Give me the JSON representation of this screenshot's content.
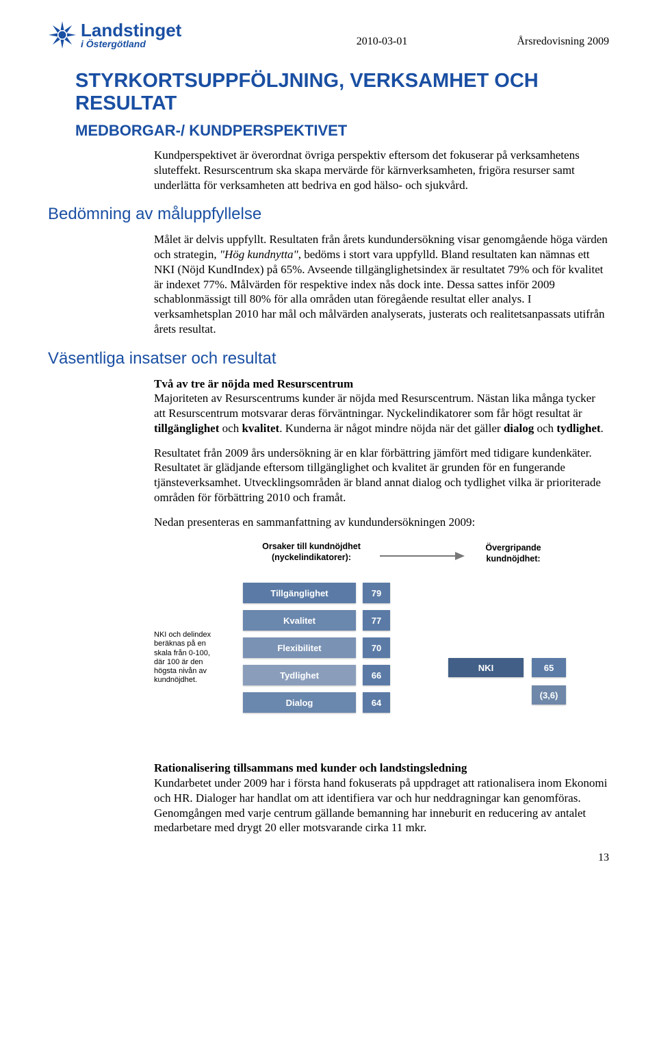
{
  "logo": {
    "line1": "Landstinget",
    "line2": "i Östergötland",
    "star_color": "#1a4fa3"
  },
  "header": {
    "date": "2010-03-01",
    "doc_title": "Årsredovisning 2009"
  },
  "page_number": "13",
  "title": "STYRKORTSUPPFÖLJNING, VERKSAMHET OCH RESULTAT",
  "subtitle": "MEDBORGAR-/ KUNDPERSPEKTIVET",
  "intro": "Kundperspektivet är överordnat övriga perspektiv eftersom det fokuserar på verksamhetens sluteffekt. Resurscentrum ska skapa mervärde för kärnverksamheten, frigöra resurser samt underlätta för verksamheten att bedriva en god hälso- och sjukvård.",
  "sections": {
    "s1": {
      "heading": "Bedömning av måluppfyllelse",
      "p1": "Målet är delvis uppfyllt. Resultaten från årets kundundersökning visar genomgående höga värden och strategin, \"Hög kundnytta\", bedöms i stort vara uppfylld. Bland resultaten kan nämnas ett NKI (Nöjd KundIndex) på 65%. Avseende tillgänglighetsindex är resultatet 79% och för kvalitet är indexet 77%. Målvärden för respektive index nås dock inte. Dessa sattes inför 2009 schablonmässigt till 80% för alla områden utan föregående resultat eller analys. I verksamhetsplan 2010 har mål och målvärden analyserats, justerats och realitetsanpassats utifrån årets resultat."
    },
    "s2": {
      "heading": "Väsentliga insatser och resultat",
      "b1_title": "Två av tre är nöjda med Resurscentrum",
      "p2": "Majoriteten av Resurscentrums kunder är nöjda med Resurscentrum. Nästan lika många tycker att Resurscentrum motsvarar deras förväntningar. Nyckelindikatorer som får högt resultat är tillgänglighet och kvalitet. Kunderna är något mindre nöjda när det gäller dialog och tydlighet.",
      "p3": "Resultatet från 2009 års undersökning är en klar förbättring jämfört med tidigare kundenkäter. Resultatet är glädjande eftersom tillgänglighet och kvalitet är grunden för en fungerande tjänsteverksamhet. Utvecklingsområden är bland annat dialog och tydlighet vilka är prioriterade områden för förbättring 2010 och framåt.",
      "p4": "Nedan presenteras en sammanfattning av kundundersökningen 2009:",
      "b2_title": "Rationalisering tillsammans med kunder och landstingsledning",
      "p5": "Kundarbetet under 2009 har i första hand fokuserats på uppdraget att rationalisera inom Ekonomi och HR. Dialoger har handlat om att identifiera var och hur neddragningar kan genomföras. Genomgången med varje centrum gällande bemanning har inneburit en reducering av antalet medarbetare med drygt 20 eller motsvarande cirka 11 mkr."
    }
  },
  "diagram": {
    "note": "NKI och delindex beräknas på en skala från 0-100, där 100 är den högsta nivån av kundnöjdhet.",
    "causes_title": "Orsaker till kundnöjdhet (nyckelindikatorer):",
    "overall_title": "Övergripande kundnöjdhet:",
    "colors": {
      "bar1": "#5b7ba6",
      "bar2": "#6a87ad",
      "bar3": "#7a92b4",
      "bar4": "#8a9ebb",
      "bar5": "#6a87ad",
      "value_bg": "#5b7ba6",
      "nki_label": "#415f87",
      "nki_value": "#5b7ba6",
      "delta": "#6f88a9"
    },
    "bars": [
      {
        "label": "Tillgänglighet",
        "value": "79"
      },
      {
        "label": "Kvalitet",
        "value": "77"
      },
      {
        "label": "Flexibilitet",
        "value": "70"
      },
      {
        "label": "Tydlighet",
        "value": "66"
      },
      {
        "label": "Dialog",
        "value": "64"
      }
    ],
    "nki": {
      "label": "NKI",
      "value": "65",
      "delta": "(3,6)"
    }
  }
}
